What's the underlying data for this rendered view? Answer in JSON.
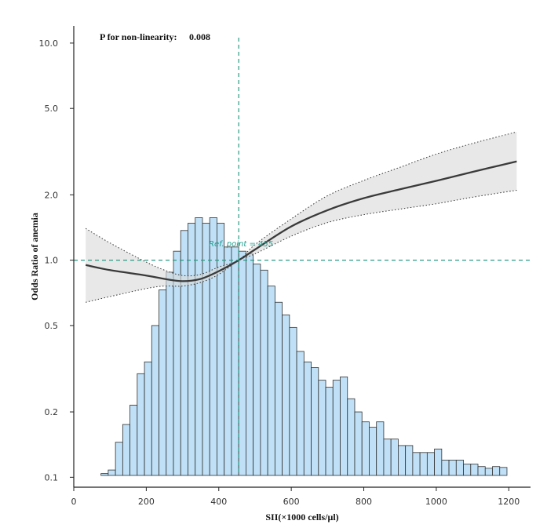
{
  "chart_data": {
    "type": "line",
    "title": "",
    "xlabel": "SII(×1000 cells/μl)",
    "ylabel": "Odds Ratio of anemia",
    "xlim": [
      0,
      1260
    ],
    "xticks": [
      0,
      200,
      400,
      600,
      800,
      1000,
      1200
    ],
    "yscale": "log",
    "ylim": [
      0.09,
      12
    ],
    "yticks": [
      0.1,
      0.2,
      0.5,
      1.0,
      2.0,
      5.0,
      10.0
    ],
    "ytick_labels": [
      "0.1",
      "0.2",
      "0.5",
      "1.0",
      "2.0",
      "5.0",
      "10.0"
    ],
    "annotation": {
      "label": "P for non-linearity:",
      "value": "0.008"
    },
    "reference": {
      "label": "Ref. point = 455",
      "x": 455,
      "y": 1.0
    },
    "series": [
      {
        "kind": "spline",
        "x": [
          33,
          100,
          200,
          250,
          300,
          350,
          400,
          455,
          500,
          600,
          700,
          800,
          900,
          1000,
          1100,
          1222
        ],
        "or": [
          0.95,
          0.9,
          0.85,
          0.82,
          0.8,
          0.82,
          0.89,
          1.0,
          1.12,
          1.43,
          1.7,
          1.93,
          2.12,
          2.32,
          2.55,
          2.85
        ],
        "lower": [
          0.64,
          0.68,
          0.74,
          0.76,
          0.76,
          0.79,
          0.86,
          1.0,
          1.07,
          1.29,
          1.49,
          1.62,
          1.72,
          1.82,
          1.95,
          2.1
        ],
        "upper": [
          1.4,
          1.2,
          0.98,
          0.9,
          0.85,
          0.86,
          0.93,
          1.0,
          1.18,
          1.55,
          1.98,
          2.33,
          2.68,
          3.08,
          3.45,
          3.9
        ]
      },
      {
        "kind": "histogram",
        "bin_width": 20,
        "bin_starts": [
          55,
          75,
          95,
          115,
          135,
          155,
          175,
          195,
          215,
          235,
          255,
          275,
          295,
          315,
          335,
          355,
          375,
          395,
          415,
          435,
          455,
          475,
          495,
          515,
          535,
          555,
          575,
          595,
          615,
          635,
          655,
          675,
          695,
          715,
          735,
          755,
          775,
          795,
          815,
          835,
          855,
          875,
          895,
          915,
          935,
          955,
          975,
          995,
          1015,
          1035,
          1055,
          1075,
          1095,
          1115,
          1135,
          1155,
          1175
        ],
        "heights": [
          0.097,
          0.104,
          0.108,
          0.145,
          0.175,
          0.215,
          0.3,
          0.34,
          0.5,
          0.73,
          0.88,
          1.1,
          1.37,
          1.48,
          1.57,
          1.48,
          1.57,
          1.48,
          1.15,
          1.15,
          1.1,
          1.07,
          0.96,
          0.9,
          0.76,
          0.64,
          0.56,
          0.49,
          0.38,
          0.34,
          0.32,
          0.28,
          0.26,
          0.28,
          0.29,
          0.23,
          0.2,
          0.18,
          0.17,
          0.18,
          0.15,
          0.15,
          0.14,
          0.14,
          0.13,
          0.13,
          0.13,
          0.135,
          0.12,
          0.12,
          0.12,
          0.115,
          0.115,
          0.112,
          0.11,
          0.112,
          0.111
        ]
      }
    ],
    "colors": {
      "bar_fill": "#bfe0f6",
      "bar_stroke": "#333333",
      "curve": "#3a3a3a",
      "ci_fill": "#d9d9d9",
      "reference": "#2a9a84",
      "ref_label": "#1f9e90",
      "axis": "#222222"
    }
  }
}
